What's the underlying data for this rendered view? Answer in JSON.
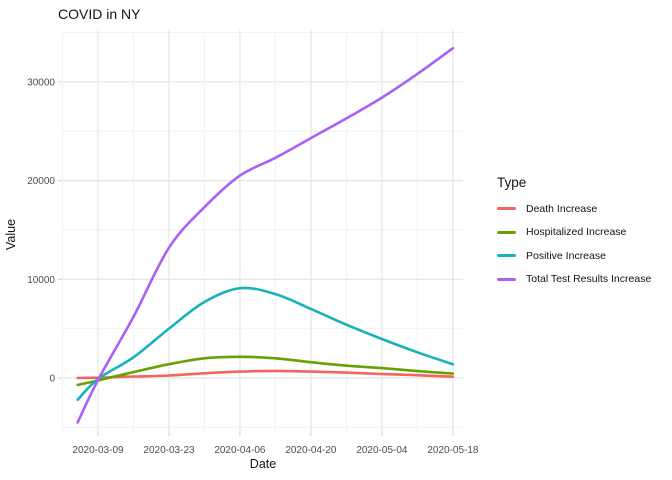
{
  "title": "COVID in NY",
  "axes": {
    "x_label": "Date",
    "y_label": "Value"
  },
  "legend": {
    "title": "Type"
  },
  "chart_data": {
    "type": "line",
    "title": "COVID in NY",
    "xlabel": "Date",
    "ylabel": "Value",
    "legend_title": "Type",
    "legend_position": "right",
    "grid": true,
    "x_tick_labels": [
      "2020-03-09",
      "2020-03-23",
      "2020-04-06",
      "2020-04-20",
      "2020-05-04",
      "2020-05-18"
    ],
    "x_tick_days": [
      0,
      14,
      28,
      42,
      56,
      70
    ],
    "x_minor_days": [
      -7,
      7,
      21,
      35,
      49,
      63
    ],
    "y_ticks": [
      0,
      10000,
      20000,
      30000
    ],
    "y_minor_ticks": [
      -5000,
      5000,
      15000,
      25000,
      35000
    ],
    "xlim_days": [
      -6.9,
      72
    ],
    "ylim": [
      -5470,
      35250
    ],
    "x_dates": [
      "2020-03-05",
      "2020-03-09",
      "2020-03-16",
      "2020-03-23",
      "2020-03-30",
      "2020-04-06",
      "2020-04-13",
      "2020-04-20",
      "2020-04-27",
      "2020-05-04",
      "2020-05-11",
      "2020-05-18"
    ],
    "x_days": [
      -4,
      0,
      7,
      14,
      21,
      28,
      35,
      42,
      49,
      56,
      63,
      70
    ],
    "series": [
      {
        "name": "Death Increase",
        "color": "#F4655F",
        "values": [
          0,
          30,
          150,
          250,
          480,
          650,
          720,
          650,
          550,
          400,
          280,
          130
        ]
      },
      {
        "name": "Hospitalized Increase",
        "color": "#66A203",
        "values": [
          -700,
          -250,
          600,
          1400,
          2000,
          2150,
          2000,
          1600,
          1250,
          1000,
          700,
          450
        ]
      },
      {
        "name": "Positive Increase",
        "color": "#17B3BA",
        "values": [
          -2200,
          -100,
          2100,
          5000,
          7700,
          9100,
          8500,
          7000,
          5400,
          3950,
          2600,
          1400
        ]
      },
      {
        "name": "Total Test Results Increase",
        "color": "#AC5EF5",
        "values": [
          -4500,
          -200,
          6200,
          13200,
          17300,
          20500,
          22300,
          24300,
          26300,
          28400,
          30800,
          33400
        ]
      }
    ],
    "style": {
      "grid_major_color": "#E5E5E5",
      "grid_minor_color": "#F2F2F2",
      "tick_mark_color": "#CFCFCF",
      "tick_label_color": "#4D4D4D"
    }
  }
}
